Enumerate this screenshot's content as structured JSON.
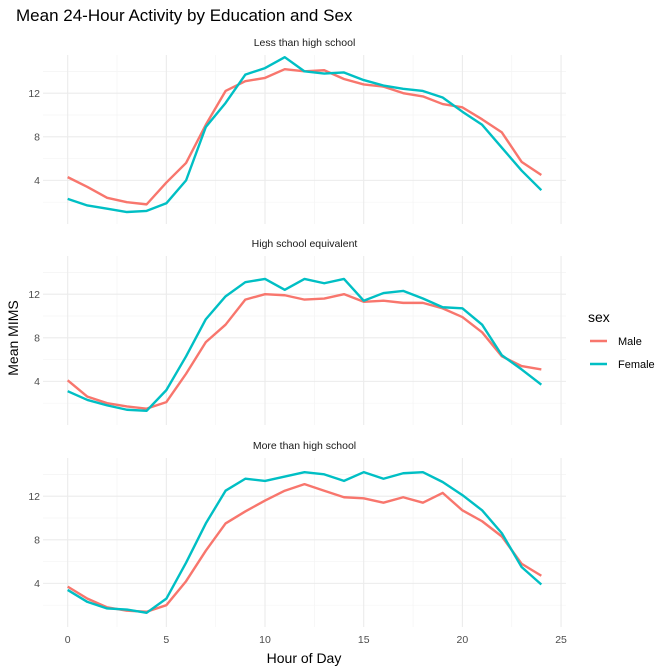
{
  "chart_data": {
    "type": "line",
    "title": "Mean 24-Hour Activity by Education and Sex",
    "xlabel": "Hour of Day",
    "ylabel": "Mean MIMS",
    "xlim": [
      0,
      24
    ],
    "ylim": [
      0,
      15.5
    ],
    "x_ticks": [
      0,
      5,
      10,
      15,
      20,
      25
    ],
    "y_ticks": [
      4,
      8,
      12
    ],
    "grid": true,
    "legend": {
      "title": "sex",
      "position": "right",
      "entries": [
        {
          "name": "Male",
          "color": "#F8766D"
        },
        {
          "name": "Female",
          "color": "#00BFC4"
        }
      ]
    },
    "x": [
      0,
      1,
      2,
      3,
      4,
      5,
      6,
      7,
      8,
      9,
      10,
      11,
      12,
      13,
      14,
      15,
      16,
      17,
      18,
      19,
      20,
      21,
      22,
      23,
      24
    ],
    "facets": [
      {
        "strip": "Less than high school",
        "series": [
          {
            "name": "Male",
            "values": [
              4.3,
              3.4,
              2.4,
              2.0,
              1.8,
              3.8,
              5.6,
              9.1,
              12.2,
              13.1,
              13.4,
              14.2,
              14.0,
              14.1,
              13.3,
              12.8,
              12.6,
              12.0,
              11.7,
              11.0,
              10.7,
              9.6,
              8.4,
              5.7,
              4.5
            ]
          },
          {
            "name": "Female",
            "values": [
              2.3,
              1.7,
              1.4,
              1.1,
              1.2,
              1.9,
              4.0,
              8.9,
              11.1,
              13.7,
              14.3,
              15.3,
              14.0,
              13.8,
              13.9,
              13.2,
              12.7,
              12.4,
              12.2,
              11.6,
              10.3,
              9.1,
              7.0,
              4.9,
              3.1
            ]
          }
        ]
      },
      {
        "strip": "High school equivalent",
        "series": [
          {
            "name": "Male",
            "values": [
              4.1,
              2.6,
              2.0,
              1.7,
              1.5,
              2.1,
              4.7,
              7.6,
              9.2,
              11.5,
              12.0,
              11.9,
              11.5,
              11.6,
              12.0,
              11.3,
              11.4,
              11.2,
              11.2,
              10.7,
              9.9,
              8.5,
              6.3,
              5.4,
              5.1
            ]
          },
          {
            "name": "Female",
            "values": [
              3.1,
              2.3,
              1.8,
              1.4,
              1.3,
              3.2,
              6.3,
              9.7,
              11.8,
              13.1,
              13.4,
              12.4,
              13.4,
              13.0,
              13.4,
              11.4,
              12.1,
              12.3,
              11.6,
              10.8,
              10.7,
              9.2,
              6.4,
              5.1,
              3.7
            ]
          }
        ]
      },
      {
        "strip": "More than high school",
        "series": [
          {
            "name": "Male",
            "values": [
              3.7,
              2.6,
              1.8,
              1.5,
              1.4,
              2.0,
              4.2,
              7.0,
              9.5,
              10.6,
              11.6,
              12.5,
              13.1,
              12.5,
              11.9,
              11.8,
              11.4,
              11.9,
              11.4,
              12.3,
              10.7,
              9.7,
              8.3,
              5.8,
              4.7
            ]
          },
          {
            "name": "Female",
            "values": [
              3.4,
              2.3,
              1.7,
              1.6,
              1.3,
              2.6,
              5.9,
              9.5,
              12.5,
              13.6,
              13.4,
              13.8,
              14.2,
              14.0,
              13.4,
              14.2,
              13.6,
              14.1,
              14.2,
              13.3,
              12.1,
              10.7,
              8.6,
              5.5,
              3.9
            ]
          }
        ]
      }
    ]
  }
}
